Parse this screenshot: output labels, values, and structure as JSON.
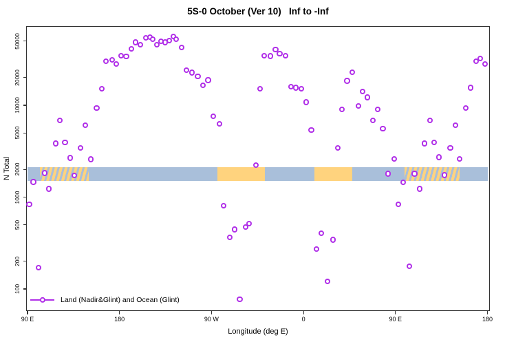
{
  "title": "5S-0 October (Ver 10)   Inf to -Inf",
  "colors": {
    "marker": "#B02FE8",
    "ocean_band": "#A9BFDA",
    "land_band": "#FFD37E",
    "axis": "#333333",
    "text": "#000000",
    "background": "#ffffff"
  },
  "legend": {
    "label": "Land (Nadir&Glint) and Ocean (Glint)",
    "position": "bottom-left-inside"
  },
  "chart_data": {
    "type": "scatter",
    "title": "5S-0 October (Ver 10)   Inf to -Inf",
    "xlabel": "Longitude (deg E)",
    "ylabel": "N Total",
    "x_axis": {
      "range_deg": [
        90,
        540
      ],
      "note": "longitude in deg E, unwrapped eastward across the dateline (450 deg span)",
      "ticks": [
        {
          "value": 90,
          "label": "90 E"
        },
        {
          "value": 180,
          "label": "180"
        },
        {
          "value": 270,
          "label": "90 W"
        },
        {
          "value": 360,
          "label": "0"
        },
        {
          "value": 450,
          "label": "90 E"
        },
        {
          "value": 540,
          "label": "180"
        }
      ],
      "grid": false
    },
    "y_axis": {
      "scale": "log10",
      "tick_values": [
        100,
        200,
        500,
        1000,
        2000,
        5000,
        10000,
        20000,
        50000
      ],
      "tick_labels": [
        "100",
        "200",
        "500",
        "1000",
        "2000",
        "5000",
        "10000",
        "20000",
        "50000"
      ],
      "range": [
        70,
        60000
      ],
      "grid": false
    },
    "map_band": {
      "description": "horizontal strip near N=2000 showing surface type vs longitude",
      "value_range": [
        1500,
        2100
      ],
      "ocean_color": "#A9BFDA",
      "land_color": "#FFD37E",
      "ocean_extent_deg": [
        90,
        540
      ],
      "land_segments": [
        {
          "start_deg": 102,
          "end_deg": 150,
          "style": "speckled",
          "region": "Indonesia/New Guinea"
        },
        {
          "start_deg": 276,
          "end_deg": 322,
          "style": "solid",
          "region": "South America"
        },
        {
          "start_deg": 371,
          "end_deg": 408,
          "style": "solid",
          "region": "Africa"
        },
        {
          "start_deg": 459,
          "end_deg": 513,
          "style": "speckled",
          "region": "Indonesia/New Guinea"
        }
      ]
    },
    "series": [
      {
        "name": "Land (Nadir&Glint) and Ocean (Glint)",
        "marker": {
          "shape": "open-circle",
          "color": "#B02FE8",
          "fill": "#ffffff"
        },
        "points": [
          {
            "lon": 92,
            "n": 830
          },
          {
            "lon": 96,
            "n": 1450
          },
          {
            "lon": 101,
            "n": 170
          },
          {
            "lon": 107,
            "n": 1810
          },
          {
            "lon": 111,
            "n": 1220
          },
          {
            "lon": 118,
            "n": 3800
          },
          {
            "lon": 122,
            "n": 6800
          },
          {
            "lon": 127,
            "n": 3900
          },
          {
            "lon": 132,
            "n": 2650
          },
          {
            "lon": 136,
            "n": 1700
          },
          {
            "lon": 142,
            "n": 3400
          },
          {
            "lon": 147,
            "n": 6000
          },
          {
            "lon": 152,
            "n": 2560
          },
          {
            "lon": 158,
            "n": 9200
          },
          {
            "lon": 163,
            "n": 15000
          },
          {
            "lon": 167,
            "n": 30000
          },
          {
            "lon": 173,
            "n": 31000
          },
          {
            "lon": 177,
            "n": 28000
          },
          {
            "lon": 182,
            "n": 34500
          },
          {
            "lon": 187,
            "n": 33500
          },
          {
            "lon": 192,
            "n": 41000
          },
          {
            "lon": 196,
            "n": 48000
          },
          {
            "lon": 201,
            "n": 45000
          },
          {
            "lon": 206,
            "n": 54000
          },
          {
            "lon": 210,
            "n": 55000
          },
          {
            "lon": 213,
            "n": 52000
          },
          {
            "lon": 217,
            "n": 45500
          },
          {
            "lon": 221,
            "n": 49000
          },
          {
            "lon": 225,
            "n": 48000
          },
          {
            "lon": 229,
            "n": 50500
          },
          {
            "lon": 233,
            "n": 56000
          },
          {
            "lon": 236,
            "n": 52000
          },
          {
            "lon": 241,
            "n": 42000
          },
          {
            "lon": 246,
            "n": 24000
          },
          {
            "lon": 251,
            "n": 22500
          },
          {
            "lon": 257,
            "n": 20500
          },
          {
            "lon": 262,
            "n": 16300
          },
          {
            "lon": 267,
            "n": 18600
          },
          {
            "lon": 272,
            "n": 7500
          },
          {
            "lon": 278,
            "n": 6200
          },
          {
            "lon": 282,
            "n": 800
          },
          {
            "lon": 288,
            "n": 360
          },
          {
            "lon": 293,
            "n": 440
          },
          {
            "lon": 298,
            "n": 76
          },
          {
            "lon": 304,
            "n": 465
          },
          {
            "lon": 307,
            "n": 510
          },
          {
            "lon": 314,
            "n": 2200
          },
          {
            "lon": 318,
            "n": 15000
          },
          {
            "lon": 322,
            "n": 34500
          },
          {
            "lon": 328,
            "n": 34000
          },
          {
            "lon": 333,
            "n": 40000
          },
          {
            "lon": 337,
            "n": 36000
          },
          {
            "lon": 343,
            "n": 34500
          },
          {
            "lon": 348,
            "n": 15700
          },
          {
            "lon": 353,
            "n": 15400
          },
          {
            "lon": 358,
            "n": 15100
          },
          {
            "lon": 363,
            "n": 10700
          },
          {
            "lon": 368,
            "n": 5300
          },
          {
            "lon": 373,
            "n": 270
          },
          {
            "lon": 378,
            "n": 400
          },
          {
            "lon": 384,
            "n": 120
          },
          {
            "lon": 389,
            "n": 340
          },
          {
            "lon": 394,
            "n": 3400
          },
          {
            "lon": 398,
            "n": 8900
          },
          {
            "lon": 403,
            "n": 18300
          },
          {
            "lon": 408,
            "n": 22800
          },
          {
            "lon": 414,
            "n": 9800
          },
          {
            "lon": 418,
            "n": 14000
          },
          {
            "lon": 423,
            "n": 12100
          },
          {
            "lon": 428,
            "n": 6800
          },
          {
            "lon": 433,
            "n": 8900
          },
          {
            "lon": 438,
            "n": 5500
          },
          {
            "lon": 443,
            "n": 1780
          },
          {
            "lon": 449,
            "n": 2600
          },
          {
            "lon": 453,
            "n": 830
          },
          {
            "lon": 458,
            "n": 1430
          },
          {
            "lon": 464,
            "n": 175
          },
          {
            "lon": 469,
            "n": 1780
          },
          {
            "lon": 474,
            "n": 1220
          },
          {
            "lon": 479,
            "n": 3800
          },
          {
            "lon": 484,
            "n": 6800
          },
          {
            "lon": 488,
            "n": 3900
          },
          {
            "lon": 493,
            "n": 2700
          },
          {
            "lon": 498,
            "n": 1720
          },
          {
            "lon": 504,
            "n": 3400
          },
          {
            "lon": 509,
            "n": 6000
          },
          {
            "lon": 513,
            "n": 2600
          },
          {
            "lon": 519,
            "n": 9200
          },
          {
            "lon": 524,
            "n": 15400
          },
          {
            "lon": 529,
            "n": 30000
          },
          {
            "lon": 533,
            "n": 32000
          },
          {
            "lon": 538,
            "n": 28000
          }
        ]
      }
    ],
    "legend": {
      "entries": [
        "Land (Nadir&Glint) and Ocean (Glint)"
      ],
      "position": "bottom-left-inside"
    }
  }
}
